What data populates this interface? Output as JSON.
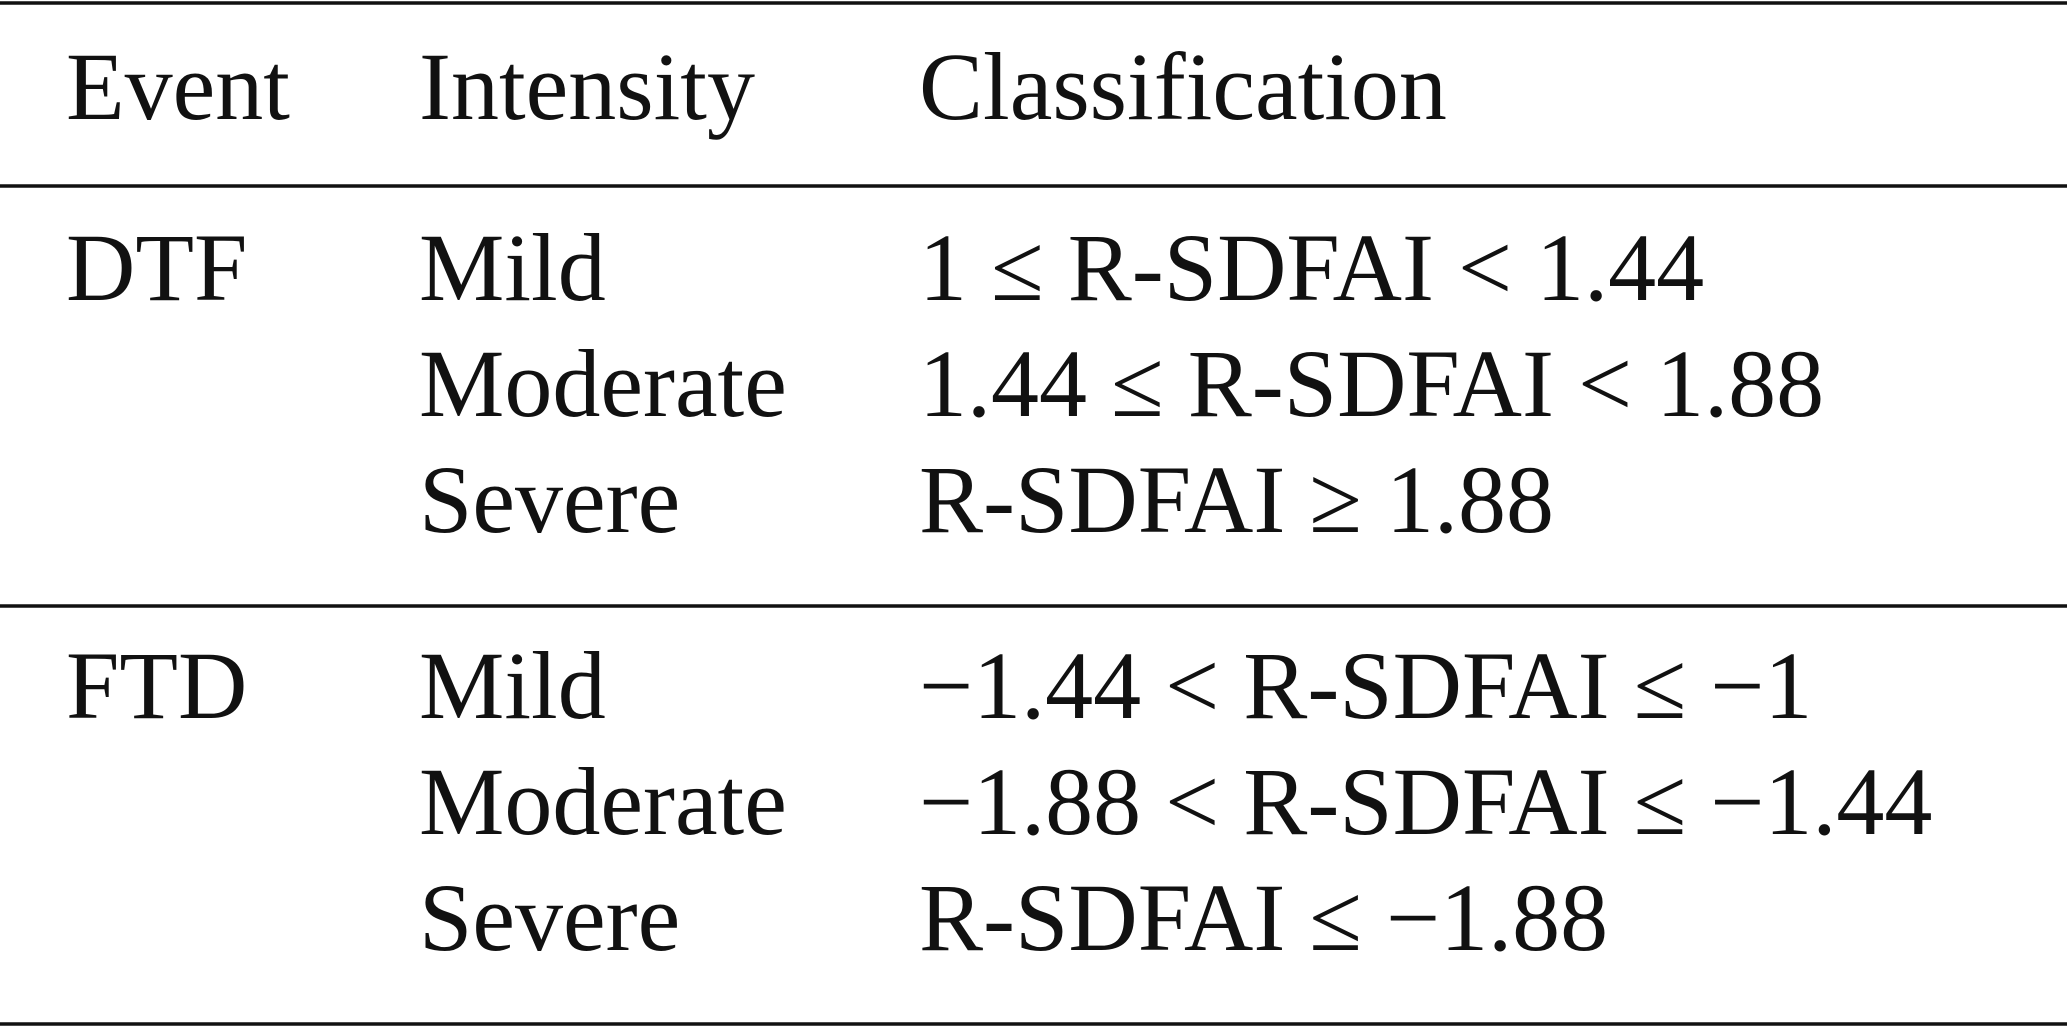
{
  "table": {
    "header": [
      "Event",
      "Intensity",
      "Classification"
    ],
    "groups": [
      {
        "event": "DTF",
        "rows": [
          [
            "Mild",
            "1 ≤ R-SDFAI < 1.44"
          ],
          [
            "Moderate",
            "1.44 ≤ R-SDFAI < 1.88"
          ],
          [
            "Severe",
            "R-SDFAI ≥ 1.88"
          ]
        ]
      },
      {
        "event": "FTD",
        "rows": [
          [
            "Mild",
            "−1.44 < R-SDFAI ≤ −1"
          ],
          [
            "Moderate",
            "−1.88 < R-SDFAI ≤ −1.44"
          ],
          [
            "Severe",
            "R-SDFAI ≤ −1.88"
          ]
        ]
      }
    ]
  }
}
